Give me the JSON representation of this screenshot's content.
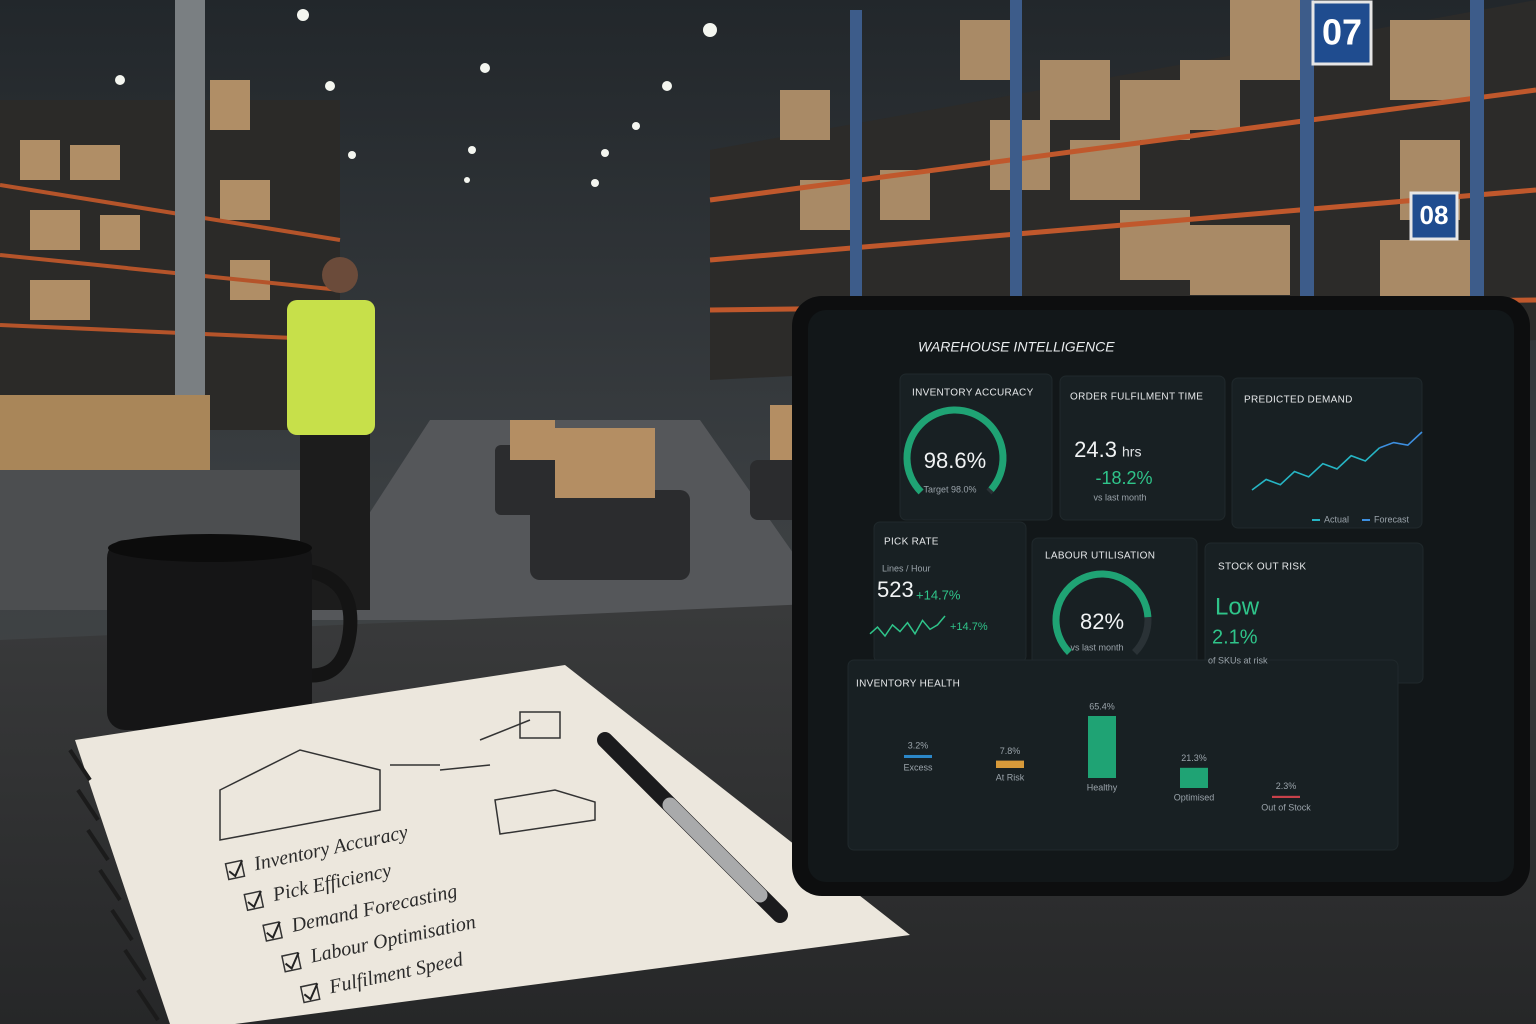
{
  "signs": [
    "07",
    "08"
  ],
  "dashboard": {
    "title": "WAREHOUSE INTELLIGENCE",
    "inventory_accuracy": {
      "title": "INVENTORY ACCURACY",
      "value": 98.6,
      "value_label": "98.6%",
      "target": "Target 98.0%"
    },
    "order_fulfilment_time": {
      "title": "ORDER FULFILMENT TIME",
      "value": "24.3",
      "unit": "hrs",
      "change": "-18.2%",
      "note": "vs last month"
    },
    "predicted_demand": {
      "title": "PREDICTED DEMAND",
      "series": [
        {
          "name": "Actual",
          "color": "#26b5c4",
          "values": [
            8,
            12,
            10,
            15,
            13,
            18,
            16,
            21,
            19,
            24,
            null,
            null,
            null
          ]
        },
        {
          "name": "Forecast",
          "color": "#3d8fe0",
          "values": [
            null,
            null,
            null,
            null,
            null,
            null,
            null,
            null,
            null,
            24,
            26,
            25,
            30
          ]
        }
      ]
    },
    "pick_rate": {
      "title": "PICK RATE",
      "subtitle": "Lines / Hour",
      "value": "523",
      "change": "+14.7%",
      "trend": [
        4,
        7,
        3,
        8,
        5,
        9,
        4,
        10,
        6,
        8,
        12
      ],
      "trend_change": "+14.7%"
    },
    "labour_utilisation": {
      "title": "LABOUR UTILISATION",
      "value": 82,
      "value_label": "82%",
      "note": "vs last month"
    },
    "stock_out_risk": {
      "title": "STOCK OUT RISK",
      "level": "Low",
      "value": "2.1%",
      "note": "of SKUs at risk"
    },
    "inventory_health": {
      "title": "INVENTORY HEALTH",
      "items": [
        {
          "label": "Excess",
          "value": 3.2,
          "value_label": "3.2%",
          "color": "#2b87c8"
        },
        {
          "label": "At Risk",
          "value": 7.8,
          "value_label": "7.8%",
          "color": "#d89a3a"
        },
        {
          "label": "Healthy",
          "value": 65.4,
          "value_label": "65.4%",
          "color": "#1fa374"
        },
        {
          "label": "Optimised",
          "value": 21.3,
          "value_label": "21.3%",
          "color": "#1fa374"
        },
        {
          "label": "Out of Stock",
          "value": 2.3,
          "value_label": "2.3%",
          "color": "#c8414a"
        }
      ]
    }
  },
  "notebook": {
    "checklist": [
      "Inventory Accuracy",
      "Pick Efficiency",
      "Demand Forecasting",
      "Labour Optimisation",
      "Fulfilment Speed"
    ]
  }
}
